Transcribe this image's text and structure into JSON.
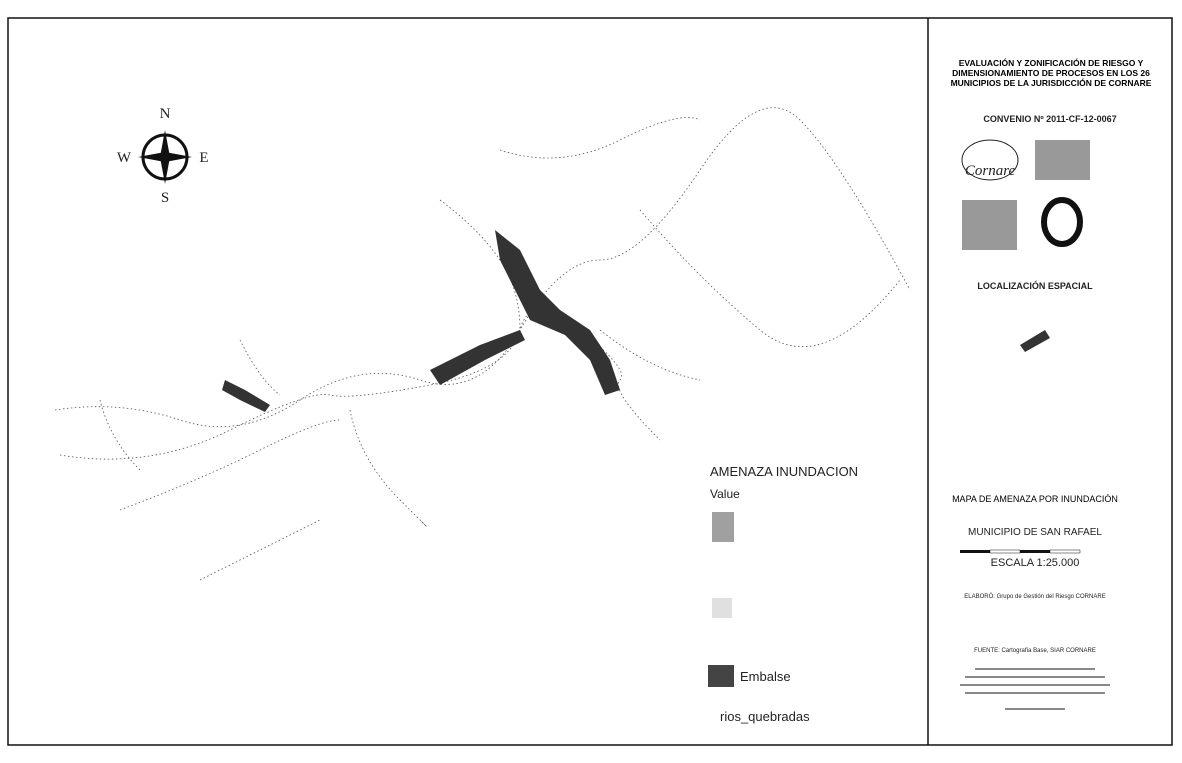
{
  "map": {
    "compass": {
      "north": "N",
      "south": "S",
      "east": "E",
      "west": "W"
    },
    "legend": {
      "title": "AMENAZA INUNDACION",
      "subtitle": "Value",
      "items": [
        "Embalse",
        "rios_quebradas"
      ]
    }
  },
  "panel": {
    "title": "EVALUACIÓN Y ZONIFICACIÓN DE RIESGO Y DIMENSIONAMIENTO DE PROCESOS EN LOS 26 MUNICIPIOS DE LA JURISDICCIÓN DE CORNARE",
    "convenio": "CONVENIO Nº 2011-CF-12-0067",
    "logo": "Cornare",
    "location_heading": "LOCALIZACIÓN ESPACIAL",
    "map_title": "MAPA DE AMENAZA POR INUNDACIÓN",
    "municipality": "MUNICIPIO DE SAN RAFAEL",
    "scale": "ESCALA 1:25.000",
    "credits": [
      "ELABORÓ: Grupo de Gestión del Riesgo CORNARE",
      "FUENTE: Cartografía Base, SIAR CORNARE"
    ]
  }
}
